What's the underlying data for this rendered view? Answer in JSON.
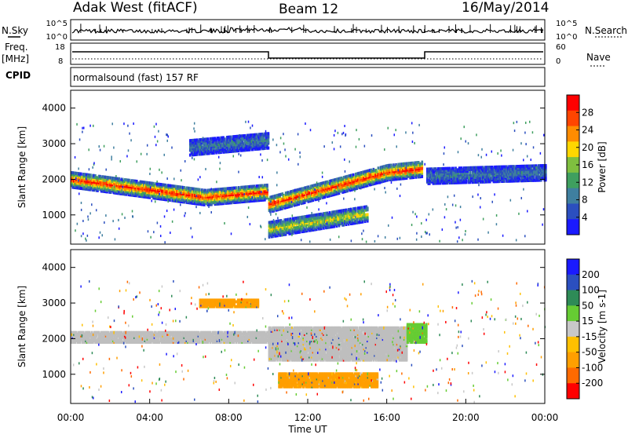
{
  "header": {
    "station": "Adak West (fitACF)",
    "beam": "Beam 12",
    "date": "16/May/2014"
  },
  "left_labels": {
    "nsky": "N.Sky",
    "freq": "Freq.",
    "mhz": "[MHz]",
    "cpid": "CPID"
  },
  "right_labels": {
    "nsearch": "N.Search",
    "nave": "Nave"
  },
  "noise_panel": {
    "tick_top": "10^5",
    "tick_bottom": "10^0",
    "rtick_top": "10^5",
    "rtick_bottom": "10^0"
  },
  "freq_panel": {
    "tick_top": "18",
    "tick_bottom": "8",
    "rtick_top": "60",
    "rtick_bottom": "0"
  },
  "cpid_text": "normalsound (fast) 157 RF",
  "colors": {
    "power_scale": [
      "#1a1aff",
      "#2b4fbf",
      "#3f7f9f",
      "#3f9f5f",
      "#7fbf3f",
      "#ffd700",
      "#ff8c00",
      "#ff4500",
      "#ff0000"
    ],
    "velocity_scale": [
      "#ff0000",
      "#ff6a00",
      "#ff9f00",
      "#ffc000",
      "#c8c8c8",
      "#66cc33",
      "#2e8b57",
      "#2b4fbf",
      "#1a1aff"
    ],
    "ground_scatter": "#bebebe"
  },
  "chart_data": [
    {
      "type": "heatmap",
      "panel": "power",
      "ylabel": "Slant Range [km]",
      "ylim": [
        180,
        4500
      ],
      "y_ticks": [
        "1000",
        "2000",
        "3000",
        "4000"
      ],
      "colorbar_label": "Power [dB]",
      "colorbar_ticks": [
        "4",
        "8",
        "12",
        "16",
        "20",
        "24",
        "28"
      ],
      "bands": [
        {
          "t": [
            0,
            6.8,
            9.9
          ],
          "r": [
            2000,
            1500,
            1650
          ],
          "level": "high"
        },
        {
          "t": [
            10,
            16,
            17.8
          ],
          "r": [
            1300,
            2200,
            2300
          ],
          "level": "high"
        },
        {
          "t": [
            18,
            24
          ],
          "r": [
            2100,
            2200
          ],
          "level": "low"
        },
        {
          "t": [
            10,
            15
          ],
          "r": [
            600,
            1050
          ],
          "level": "medium"
        },
        {
          "t": [
            6,
            10
          ],
          "r": [
            2900,
            3100
          ],
          "level": "low"
        }
      ]
    },
    {
      "type": "heatmap",
      "panel": "velocity",
      "ylabel": "Slant Range [km]",
      "xlabel": "Time UT",
      "ylim": [
        180,
        4500
      ],
      "y_ticks": [
        "1000",
        "2000",
        "3000",
        "4000"
      ],
      "x_ticks": [
        "00:00",
        "04:00",
        "08:00",
        "12:00",
        "16:00",
        "20:00",
        "00:00"
      ],
      "colorbar_label": "Velocity [m s-1]",
      "colorbar_ticks": [
        "200",
        "100",
        "50",
        "15",
        "-15",
        "-50",
        "-100",
        "-200"
      ],
      "regions": [
        {
          "t": [
            0,
            10
          ],
          "r": [
            1900,
            2200
          ],
          "color": "ground"
        },
        {
          "t": [
            10,
            17
          ],
          "r": [
            1400,
            2300
          ],
          "color": "ground"
        },
        {
          "t": [
            17,
            18
          ],
          "r": [
            1900,
            2400
          ],
          "color": "positive"
        },
        {
          "t": [
            10.5,
            15.5
          ],
          "r": [
            650,
            1050
          ],
          "color": "negative"
        },
        {
          "t": [
            6.5,
            9.5
          ],
          "r": [
            2900,
            3100
          ],
          "color": "negative"
        }
      ]
    }
  ]
}
